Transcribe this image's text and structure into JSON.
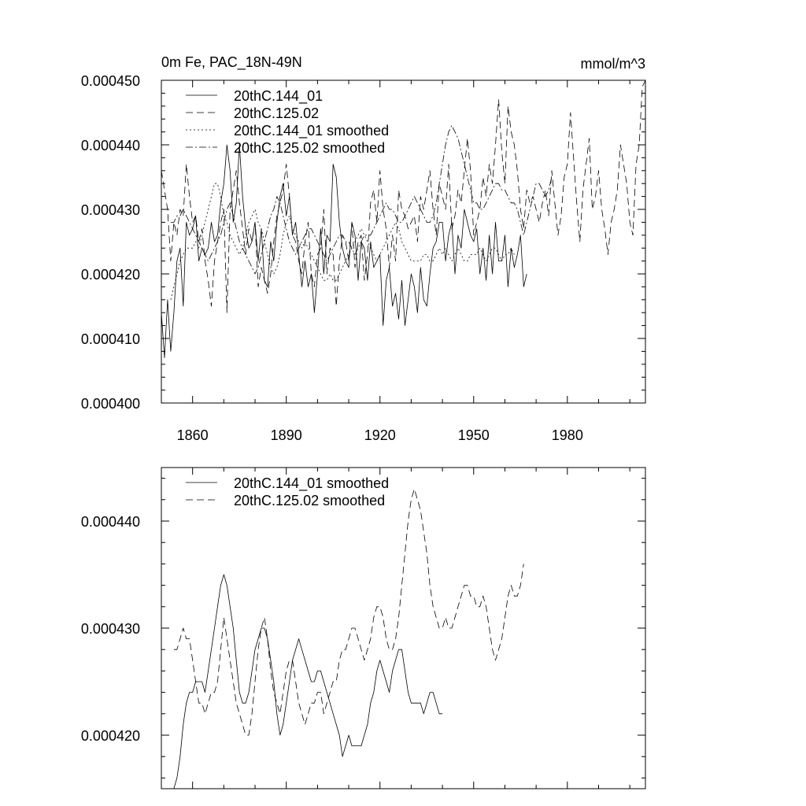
{
  "figure": {
    "top_title_left": "0m Fe, PAC_18N-49N",
    "top_title_right": "mmol/m^3"
  },
  "chart_data": [
    {
      "type": "line",
      "title": "0m Fe, PAC_18N-49N",
      "units": "mmol/m^3",
      "xlim": [
        1850,
        2005
      ],
      "ylim": [
        0.0004,
        0.00045
      ],
      "x_ticks": [
        1860,
        1890,
        1920,
        1950,
        1980
      ],
      "x_tick_labels": [
        "1860",
        "1890",
        "1920",
        "1950",
        "1980"
      ],
      "y_ticks": [
        0.0004,
        0.00041,
        0.00042,
        0.00043,
        0.00044,
        0.00045
      ],
      "y_tick_labels": [
        "0.000400",
        "0.000410",
        "0.000420",
        "0.000430",
        "0.000440",
        "0.000450"
      ],
      "legend_position": "top-left",
      "series": [
        {
          "name": "20thC.144_01",
          "style": "solid",
          "x_start": 1850,
          "values": [
            0.000414,
            0.000407,
            0.000416,
            0.000408,
            0.000414,
            0.000422,
            0.000424,
            0.000415,
            0.000428,
            0.000426,
            0.000427,
            0.000429,
            0.000422,
            0.000424,
            0.000423,
            0.000424,
            0.000428,
            0.000425,
            0.000426,
            0.000431,
            0.000434,
            0.00044,
            0.000436,
            0.000428,
            0.000431,
            0.00044,
            0.000432,
            0.000427,
            0.000424,
            0.000425,
            0.000428,
            0.000422,
            0.000427,
            0.000419,
            0.000418,
            0.000425,
            0.000422,
            0.000428,
            0.000432,
            0.000434,
            0.000429,
            0.000432,
            0.000426,
            0.000428,
            0.000423,
            0.000418,
            0.000422,
            0.000418,
            0.00042,
            0.000414,
            0.00042,
            0.000427,
            0.00042,
            0.000426,
            0.000425,
            0.000437,
            0.000435,
            0.000428,
            0.000424,
            0.000422,
            0.000421,
            0.000428,
            0.000426,
            0.000419,
            0.000425,
            0.000424,
            0.000419,
            0.000425,
            0.000421,
            0.000422,
            0.000423,
            0.000412,
            0.000419,
            0.000421,
            0.000415,
            0.000417,
            0.000413,
            0.000419,
            0.000412,
            0.000416,
            0.00042,
            0.000418,
            0.000414,
            0.000421,
            0.000416,
            0.000415,
            0.00042,
            0.000424,
            0.000425,
            0.000428,
            0.000428,
            0.000422,
            0.000426,
            0.000428,
            0.00042,
            0.000426,
            0.000424,
            0.00043,
            0.000428,
            0.000426,
            0.000425,
            0.000427,
            0.00042,
            0.000424,
            0.000419,
            0.000426,
            0.00042,
            0.000428,
            0.000422,
            0.000422,
            0.000426,
            0.000418,
            0.000424,
            0.000421,
            0.000423,
            0.000426,
            0.000418,
            0.00042
          ]
        },
        {
          "name": "20thC.125.02",
          "style": "dashed",
          "x_start": 1850,
          "values": [
            0.000436,
            0.000433,
            0.00043,
            0.000422,
            0.000428,
            0.000426,
            0.00043,
            0.000429,
            0.000437,
            0.000432,
            0.000428,
            0.000429,
            0.000425,
            0.000427,
            0.000422,
            0.000419,
            0.000415,
            0.000422,
            0.000425,
            0.000428,
            0.00043,
            0.000414,
            0.00043,
            0.000433,
            0.000436,
            0.000431,
            0.000427,
            0.000423,
            0.000427,
            0.000425,
            0.000428,
            0.000418,
            0.000421,
            0.000419,
            0.000417,
            0.00042,
            0.000425,
            0.000429,
            0.000431,
            0.000433,
            0.000437,
            0.000432,
            0.000426,
            0.000425,
            0.000422,
            0.00042,
            0.000425,
            0.000428,
            0.00042,
            0.000418,
            0.000423,
            0.000424,
            0.00043,
            0.00042,
            0.000424,
            0.000423,
            0.000415,
            0.000422,
            0.000426,
            0.000425,
            0.000422,
            0.000428,
            0.000421,
            0.000425,
            0.000426,
            0.000419,
            0.000423,
            0.000431,
            0.000433,
            0.000428,
            0.000436,
            0.00043,
            0.000427,
            0.000421,
            0.000426,
            0.000422,
            0.000433,
            0.00043,
            0.000429,
            0.000427,
            0.000428,
            0.000429,
            0.000425,
            0.000432,
            0.00043,
            0.000433,
            0.000436,
            0.00043,
            0.000426,
            0.000434,
            0.000432,
            0.00043,
            0.000437,
            0.000427,
            0.000429,
            0.000433,
            0.000431,
            0.000436,
            0.000441,
            0.000436,
            0.000426,
            0.000428,
            0.00043,
            0.000435,
            0.000432,
            0.000437,
            0.000434,
            0.00044,
            0.000447,
            0.000439,
            0.000434,
            0.000446,
            0.000442,
            0.00044,
            0.000436,
            0.00043,
            0.000427,
            0.000433,
            0.000431,
            0.000432,
            0.00043,
            0.000428,
            0.000431,
            0.000433,
            0.000429,
            0.000436,
            0.000431,
            0.000426,
            0.000429,
            0.000435,
            0.000437,
            0.000445,
            0.000438,
            0.000431,
            0.000425,
            0.000433,
            0.000437,
            0.000441,
            0.00043,
            0.000432,
            0.000436,
            0.00043,
            0.000427,
            0.000423,
            0.000428,
            0.00043,
            0.000433,
            0.00044,
            0.000437,
            0.000434,
            0.000428,
            0.000426,
            0.000437,
            0.00044,
            0.000449,
            0.00045
          ]
        },
        {
          "name": "20thC.144_01 smoothed",
          "style": "dotted",
          "x_start": 1853,
          "values": [
            0.000416,
            0.000418,
            0.00042,
            0.000422,
            0.000423,
            0.000424,
            0.000424,
            0.000424,
            0.000425,
            0.000424,
            0.000426,
            0.000428,
            0.00043,
            0.000432,
            0.000434,
            0.000434,
            0.000432,
            0.000429,
            0.000428,
            0.000426,
            0.000425,
            0.000424,
            0.000423,
            0.000424,
            0.000426,
            0.000428,
            0.000429,
            0.00043,
            0.000428,
            0.000427,
            0.000425,
            0.000423,
            0.000421,
            0.00042,
            0.000421,
            0.000423,
            0.000426,
            0.000428,
            0.000429,
            0.000427,
            0.000426,
            0.000425,
            0.000424,
            0.000425,
            0.000424,
            0.000423,
            0.000422,
            0.000421,
            0.00042,
            0.000419,
            0.000419,
            0.00042,
            0.000419,
            0.000419,
            0.00042,
            0.000421,
            0.000422,
            0.000423,
            0.000424,
            0.000425,
            0.000426,
            0.000427,
            0.000426,
            0.000425,
            0.000424,
            0.000423,
            0.000422,
            0.000423,
            0.000424,
            0.000425,
            0.000426,
            0.000427,
            0.000428,
            0.000427,
            0.000425,
            0.000424,
            0.000423,
            0.000422,
            0.000422,
            0.000422,
            0.000422,
            0.000423,
            0.000423,
            0.000422,
            0.000422,
            0.000423,
            0.000424,
            0.000423,
            0.000424,
            0.000423,
            0.000422,
            0.000423,
            0.000424,
            0.000423,
            0.000422,
            0.000422,
            0.000423,
            0.000423,
            0.000423,
            0.000424,
            0.000423,
            0.000422,
            0.000423,
            0.000424,
            0.000424,
            0.000423,
            0.000422,
            0.000423,
            0.000423,
            0.000424,
            0.000423
          ]
        },
        {
          "name": "20thC.125.02 smoothed",
          "style": "dash-dot",
          "x_start": 1853,
          "values": [
            0.000428,
            0.000428,
            0.000429,
            0.000429,
            0.00043,
            0.000429,
            0.000428,
            0.000427,
            0.000426,
            0.000425,
            0.000424,
            0.000423,
            0.000422,
            0.000423,
            0.000424,
            0.000425,
            0.000426,
            0.000428,
            0.00043,
            0.000431,
            0.000429,
            0.000427,
            0.000425,
            0.000424,
            0.000423,
            0.000422,
            0.000421,
            0.00042,
            0.000421,
            0.000423,
            0.000425,
            0.000427,
            0.000429,
            0.00043,
            0.000432,
            0.000431,
            0.000429,
            0.000427,
            0.000425,
            0.000424,
            0.000423,
            0.000424,
            0.000425,
            0.000426,
            0.000427,
            0.000427,
            0.000426,
            0.000425,
            0.000424,
            0.000423,
            0.000422,
            0.000423,
            0.000424,
            0.000425,
            0.000426,
            0.000426,
            0.000425,
            0.000425,
            0.000424,
            0.000423,
            0.000424,
            0.000425,
            0.000426,
            0.000426,
            0.000426,
            0.000427,
            0.000428,
            0.000429,
            0.00043,
            0.000431,
            0.00043,
            0.00043,
            0.000429,
            0.000428,
            0.000428,
            0.000429,
            0.00043,
            0.000431,
            0.000432,
            0.000431,
            0.00043,
            0.000429,
            0.000428,
            0.000428,
            0.000429,
            0.000431,
            0.000434,
            0.000437,
            0.00044,
            0.000442,
            0.000443,
            0.000442,
            0.000441,
            0.000439,
            0.000437,
            0.000435,
            0.000433,
            0.000431,
            0.000431,
            0.00043,
            0.00043,
            0.000431,
            0.000432,
            0.000433,
            0.000434,
            0.000434,
            0.000433,
            0.000433,
            0.000432,
            0.000431,
            0.000431,
            0.00043,
            0.000428,
            0.000426,
            0.000428,
            0.00043,
            0.000432,
            0.000434,
            0.000434,
            0.000433,
            0.000432,
            0.000433,
            0.000435
          ]
        }
      ]
    },
    {
      "type": "line",
      "title": "",
      "xlim": [
        1850,
        2005
      ],
      "ylim": [
        0.000415,
        0.000445
      ],
      "x_ticks": [
        1860,
        1890,
        1920,
        1950,
        1980
      ],
      "x_tick_labels": [],
      "y_ticks": [
        0.00042,
        0.00043,
        0.00044
      ],
      "y_tick_labels": [
        "0.000420",
        "0.000430",
        "0.000440"
      ],
      "legend_position": "top-left",
      "series": [
        {
          "name": "20thC.144_01 smoothed",
          "style": "solid",
          "x_start": 1854,
          "values": [
            0.000415,
            0.000416,
            0.000418,
            0.000421,
            0.000423,
            0.000424,
            0.000424,
            0.000425,
            0.000425,
            0.000425,
            0.000424,
            0.000426,
            0.000428,
            0.00043,
            0.000432,
            0.000434,
            0.000435,
            0.000434,
            0.000432,
            0.00043,
            0.000427,
            0.000424,
            0.000423,
            0.000423,
            0.000424,
            0.000426,
            0.000428,
            0.000429,
            0.00043,
            0.00043,
            0.000429,
            0.000427,
            0.000425,
            0.000422,
            0.00042,
            0.000421,
            0.000423,
            0.000425,
            0.000427,
            0.000428,
            0.000429,
            0.000428,
            0.000427,
            0.000426,
            0.000425,
            0.000425,
            0.000426,
            0.000426,
            0.000425,
            0.000424,
            0.000423,
            0.000422,
            0.000421,
            0.00042,
            0.000418,
            0.000419,
            0.00042,
            0.000419,
            0.000419,
            0.000419,
            0.000419,
            0.00042,
            0.000421,
            0.000423,
            0.000424,
            0.000426,
            0.000427,
            0.000426,
            0.000425,
            0.000424,
            0.000426,
            0.000427,
            0.000428,
            0.000428,
            0.000426,
            0.000424,
            0.000423,
            0.000423,
            0.000423,
            0.000423,
            0.000422,
            0.000423,
            0.000424,
            0.000424,
            0.000423,
            0.000422,
            0.000422
          ]
        },
        {
          "name": "20thC.125.02 smoothed",
          "style": "dashed",
          "x_start": 1854,
          "values": [
            0.000428,
            0.000428,
            0.000429,
            0.00043,
            0.000429,
            0.000429,
            0.000427,
            0.000425,
            0.000423,
            0.000423,
            0.000422,
            0.000423,
            0.000424,
            0.000424,
            0.000425,
            0.000428,
            0.000431,
            0.000429,
            0.000427,
            0.000425,
            0.000423,
            0.000422,
            0.000421,
            0.00042,
            0.00042,
            0.000422,
            0.000425,
            0.000428,
            0.00043,
            0.000431,
            0.000429,
            0.000426,
            0.000424,
            0.000423,
            0.000422,
            0.000424,
            0.000426,
            0.000427,
            0.000427,
            0.000425,
            0.000423,
            0.000422,
            0.000421,
            0.000422,
            0.000423,
            0.000423,
            0.000424,
            0.000424,
            0.000422,
            0.000423,
            0.000424,
            0.000425,
            0.000425,
            0.000427,
            0.000428,
            0.000428,
            0.000429,
            0.00043,
            0.00043,
            0.000429,
            0.000428,
            0.000427,
            0.000428,
            0.000429,
            0.000431,
            0.000432,
            0.000432,
            0.000431,
            0.000429,
            0.000428,
            0.000428,
            0.000429,
            0.000431,
            0.000434,
            0.000437,
            0.00044,
            0.000442,
            0.000443,
            0.000442,
            0.000441,
            0.000439,
            0.000437,
            0.000434,
            0.000432,
            0.000431,
            0.00043,
            0.00043,
            0.000431,
            0.00043,
            0.00043,
            0.000431,
            0.000432,
            0.000433,
            0.000434,
            0.000434,
            0.000433,
            0.000433,
            0.000432,
            0.000432,
            0.000433,
            0.000432,
            0.00043,
            0.000428,
            0.000427,
            0.000428,
            0.000429,
            0.000431,
            0.000433,
            0.000434,
            0.000433,
            0.000433,
            0.000434,
            0.000436
          ]
        }
      ]
    }
  ]
}
